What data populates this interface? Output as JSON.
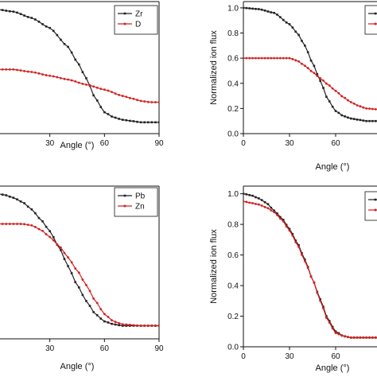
{
  "chart_data": [
    {
      "type": "line",
      "panel": "top-left",
      "xlabel": "Angle (°)",
      "ylabel": "",
      "xlim": [
        0,
        90
      ],
      "ylim": [
        0,
        1.05
      ],
      "x_ticks": [
        30,
        60,
        90
      ],
      "y_ticks": [],
      "legend_position": "top-right",
      "series": [
        {
          "name": "Zr",
          "color": "#222222",
          "marker": "square",
          "x": [
            0,
            10,
            20,
            30,
            40,
            45,
            50,
            55,
            60,
            65,
            70,
            75,
            80,
            85,
            90
          ],
          "y": [
            0.99,
            0.97,
            0.92,
            0.84,
            0.69,
            0.57,
            0.44,
            0.28,
            0.17,
            0.13,
            0.11,
            0.1,
            0.09,
            0.09,
            0.09
          ]
        },
        {
          "name": "D",
          "color": "#d42020",
          "marker": "circle",
          "x": [
            0,
            10,
            20,
            30,
            40,
            50,
            60,
            70,
            75,
            80,
            85,
            90
          ],
          "y": [
            0.51,
            0.51,
            0.49,
            0.46,
            0.43,
            0.39,
            0.35,
            0.3,
            0.28,
            0.26,
            0.25,
            0.25
          ]
        }
      ]
    },
    {
      "type": "line",
      "panel": "top-right",
      "xlabel": "Angle (°)",
      "ylabel": "Normalized ion flux",
      "xlim": [
        0,
        90
      ],
      "ylim": [
        0,
        1.05
      ],
      "x_ticks": [
        0,
        30,
        60
      ],
      "y_ticks": [
        "0.0",
        "0.2",
        "0.4",
        "0.6",
        "0.8",
        "1.0"
      ],
      "legend_position": "top-right",
      "series": [
        {
          "name": "",
          "color": "#222222",
          "marker": "square",
          "x": [
            0,
            10,
            20,
            30,
            35,
            40,
            45,
            50,
            55,
            60,
            65,
            70,
            75,
            80,
            90
          ],
          "y": [
            1.0,
            0.99,
            0.96,
            0.87,
            0.8,
            0.7,
            0.56,
            0.42,
            0.27,
            0.18,
            0.14,
            0.12,
            0.11,
            0.1,
            0.1
          ]
        },
        {
          "name": "",
          "color": "#d42020",
          "marker": "circle",
          "x": [
            0,
            10,
            20,
            30,
            35,
            40,
            45,
            50,
            55,
            60,
            65,
            70,
            75,
            80,
            90
          ],
          "y": [
            0.6,
            0.6,
            0.6,
            0.6,
            0.58,
            0.54,
            0.49,
            0.44,
            0.39,
            0.34,
            0.29,
            0.25,
            0.22,
            0.2,
            0.19
          ]
        }
      ]
    },
    {
      "type": "line",
      "panel": "bottom-left",
      "xlabel": "Angle (°)",
      "ylabel": "",
      "xlim": [
        0,
        90
      ],
      "ylim": [
        0,
        1.05
      ],
      "x_ticks": [
        30,
        60,
        90
      ],
      "y_ticks": [],
      "legend_position": "top-right",
      "series": [
        {
          "name": "Pb",
          "color": "#222222",
          "marker": "square",
          "x": [
            0,
            5,
            10,
            15,
            20,
            25,
            30,
            35,
            40,
            45,
            50,
            55,
            60,
            65,
            70,
            80,
            90
          ],
          "y": [
            1.0,
            0.99,
            0.97,
            0.94,
            0.89,
            0.82,
            0.74,
            0.63,
            0.5,
            0.37,
            0.26,
            0.17,
            0.12,
            0.1,
            0.09,
            0.09,
            0.09
          ]
        },
        {
          "name": "Zn",
          "color": "#d42020",
          "marker": "circle",
          "x": [
            0,
            10,
            15,
            20,
            25,
            30,
            35,
            40,
            45,
            50,
            55,
            60,
            65,
            70,
            80,
            90
          ],
          "y": [
            0.79,
            0.79,
            0.79,
            0.78,
            0.75,
            0.7,
            0.64,
            0.56,
            0.47,
            0.37,
            0.26,
            0.17,
            0.12,
            0.1,
            0.09,
            0.09
          ]
        }
      ]
    },
    {
      "type": "line",
      "panel": "bottom-right",
      "xlabel": "Angle (°)",
      "ylabel": "Normalized ion flux",
      "xlim": [
        0,
        90
      ],
      "ylim": [
        0,
        1.05
      ],
      "x_ticks": [
        0,
        30,
        60
      ],
      "y_ticks": [
        "0.0",
        "0.2",
        "0.4",
        "0.6",
        "0.8",
        "1.0"
      ],
      "legend_position": "top-right",
      "series": [
        {
          "name": "",
          "color": "#222222",
          "marker": "square",
          "x": [
            0,
            5,
            10,
            15,
            20,
            25,
            30,
            35,
            40,
            45,
            50,
            55,
            60,
            65,
            70,
            80,
            90
          ],
          "y": [
            1.0,
            0.99,
            0.97,
            0.94,
            0.89,
            0.84,
            0.77,
            0.68,
            0.57,
            0.44,
            0.31,
            0.18,
            0.1,
            0.07,
            0.06,
            0.06,
            0.06
          ]
        },
        {
          "name": "",
          "color": "#d42020",
          "marker": "circle",
          "x": [
            0,
            5,
            10,
            15,
            20,
            25,
            30,
            35,
            40,
            45,
            50,
            55,
            60,
            65,
            70,
            80,
            90
          ],
          "y": [
            0.95,
            0.94,
            0.93,
            0.91,
            0.88,
            0.83,
            0.76,
            0.67,
            0.56,
            0.44,
            0.3,
            0.17,
            0.09,
            0.07,
            0.06,
            0.06,
            0.06
          ]
        }
      ]
    }
  ]
}
